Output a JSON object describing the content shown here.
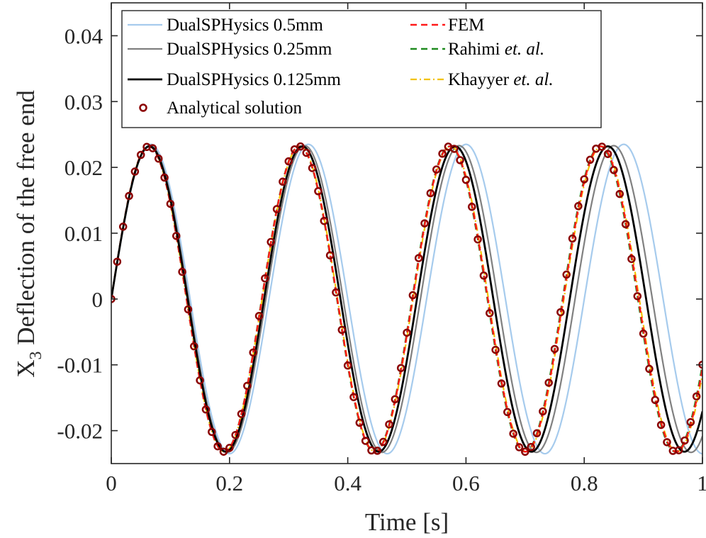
{
  "chart_data": {
    "type": "line",
    "title": "",
    "xlabel": "Time [s]",
    "ylabel_sub": "3",
    "ylabel_prefix": "X",
    "ylabel_rest": " Deflection of the free end",
    "xlim": [
      0,
      1
    ],
    "ylim": [
      -0.025,
      0.045
    ],
    "x_ticks": [
      0,
      0.2,
      0.4,
      0.6,
      0.8,
      1
    ],
    "x_tick_labels": [
      "0",
      "0.2",
      "0.4",
      "0.6",
      "0.8",
      "1"
    ],
    "y_ticks": [
      -0.02,
      -0.01,
      0,
      0.01,
      0.02,
      0.03,
      0.04
    ],
    "y_tick_labels": [
      "-0.02",
      "-0.01",
      "0",
      "0.01",
      "0.02",
      "0.03",
      "0.04"
    ],
    "grid": false,
    "legend_position": "top",
    "series": [
      {
        "name": "DualSPHysics 0.5mm",
        "style": "solid",
        "color": "#a6cbed",
        "amplitude": 0.0235,
        "period": 0.2667,
        "width": 2.2
      },
      {
        "name": "DualSPHysics 0.25mm",
        "style": "solid",
        "color": "#808080",
        "amplitude": 0.0233,
        "period": 0.2615,
        "width": 2.2
      },
      {
        "name": "DualSPHysics 0.125mm",
        "style": "solid",
        "color": "#000000",
        "amplitude": 0.0232,
        "period": 0.2585,
        "width": 2.8
      },
      {
        "name": "FEM",
        "style": "dashed",
        "color": "#ff1a1a",
        "amplitude": 0.0232,
        "period": 0.2548,
        "width": 2.5
      },
      {
        "name": "Rahimi",
        "name_suffix": "et. al.",
        "style": "dashed",
        "color": "#1f8a1f",
        "amplitude": 0.0232,
        "period": 0.2545,
        "width": 2.5
      },
      {
        "name": "Khayyer",
        "name_suffix": "et. al.",
        "style": "dashdot",
        "color": "#f2c200",
        "amplitude": 0.0232,
        "period": 0.2552,
        "width": 2.2
      },
      {
        "name": "Analytical solution",
        "style": "markers",
        "color": "#8b0000",
        "amplitude": 0.0232,
        "period": 0.2545,
        "dt": 0.01
      }
    ]
  }
}
